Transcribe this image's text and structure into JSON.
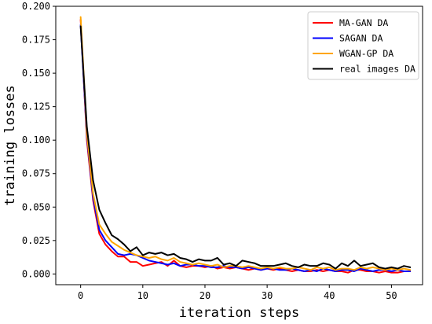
{
  "chart_data": {
    "type": "line",
    "xlabel": "iteration steps",
    "ylabel": "training losses",
    "xlim": [
      -4,
      55
    ],
    "ylim": [
      -0.008,
      0.2
    ],
    "xticks": [
      0,
      10,
      20,
      30,
      40,
      50
    ],
    "yticks": [
      0.0,
      0.025,
      0.05,
      0.075,
      0.1,
      0.125,
      0.15,
      0.175,
      0.2
    ],
    "ytick_labels": [
      "0.000",
      "0.025",
      "0.050",
      "0.075",
      "0.100",
      "0.125",
      "0.150",
      "0.175",
      "0.200"
    ],
    "grid": false,
    "legend_position": "top-right",
    "x": [
      0,
      1,
      2,
      3,
      4,
      5,
      6,
      7,
      8,
      9,
      10,
      11,
      12,
      13,
      14,
      15,
      16,
      17,
      18,
      19,
      20,
      21,
      22,
      23,
      24,
      25,
      26,
      27,
      28,
      29,
      30,
      31,
      32,
      33,
      34,
      35,
      36,
      37,
      38,
      39,
      40,
      41,
      42,
      43,
      44,
      45,
      46,
      47,
      48,
      49,
      50,
      51,
      52,
      53
    ],
    "series": [
      {
        "name": "MA-GAN DA",
        "color": "#ff0000",
        "values": [
          0.19,
          0.1,
          0.055,
          0.03,
          0.022,
          0.017,
          0.013,
          0.013,
          0.009,
          0.009,
          0.006,
          0.007,
          0.008,
          0.009,
          0.006,
          0.01,
          0.006,
          0.005,
          0.006,
          0.006,
          0.005,
          0.006,
          0.004,
          0.005,
          0.004,
          0.005,
          0.004,
          0.003,
          0.004,
          0.003,
          0.004,
          0.003,
          0.004,
          0.003,
          0.002,
          0.003,
          0.002,
          0.002,
          0.003,
          0.002,
          0.003,
          0.002,
          0.002,
          0.001,
          0.003,
          0.003,
          0.002,
          0.002,
          0.001,
          0.002,
          0.001,
          0.001,
          0.002,
          0.002
        ]
      },
      {
        "name": "SAGAN DA",
        "color": "#0000ff",
        "values": [
          0.186,
          0.103,
          0.057,
          0.033,
          0.025,
          0.02,
          0.015,
          0.014,
          0.015,
          0.014,
          0.012,
          0.01,
          0.009,
          0.008,
          0.007,
          0.008,
          0.006,
          0.007,
          0.007,
          0.006,
          0.006,
          0.005,
          0.005,
          0.006,
          0.005,
          0.005,
          0.004,
          0.005,
          0.004,
          0.003,
          0.004,
          0.004,
          0.003,
          0.003,
          0.004,
          0.003,
          0.002,
          0.003,
          0.002,
          0.004,
          0.003,
          0.002,
          0.003,
          0.003,
          0.002,
          0.004,
          0.003,
          0.002,
          0.003,
          0.003,
          0.002,
          0.003,
          0.002,
          0.002
        ]
      },
      {
        "name": "WGAN-GP DA",
        "color": "#ffa500",
        "values": [
          0.192,
          0.105,
          0.06,
          0.037,
          0.03,
          0.024,
          0.021,
          0.018,
          0.016,
          0.014,
          0.013,
          0.012,
          0.013,
          0.011,
          0.01,
          0.012,
          0.009,
          0.008,
          0.007,
          0.008,
          0.007,
          0.006,
          0.007,
          0.005,
          0.006,
          0.006,
          0.005,
          0.006,
          0.005,
          0.004,
          0.005,
          0.004,
          0.005,
          0.004,
          0.004,
          0.005,
          0.004,
          0.003,
          0.005,
          0.004,
          0.005,
          0.003,
          0.004,
          0.004,
          0.003,
          0.005,
          0.004,
          0.005,
          0.004,
          0.003,
          0.004,
          0.003,
          0.004,
          0.003
        ]
      },
      {
        "name": "real images DA",
        "color": "#000000",
        "values": [
          0.185,
          0.11,
          0.07,
          0.048,
          0.038,
          0.029,
          0.026,
          0.022,
          0.017,
          0.02,
          0.014,
          0.016,
          0.015,
          0.016,
          0.014,
          0.015,
          0.012,
          0.011,
          0.009,
          0.011,
          0.01,
          0.01,
          0.012,
          0.007,
          0.008,
          0.006,
          0.01,
          0.009,
          0.008,
          0.006,
          0.006,
          0.006,
          0.007,
          0.008,
          0.006,
          0.005,
          0.007,
          0.006,
          0.006,
          0.008,
          0.007,
          0.004,
          0.008,
          0.006,
          0.01,
          0.006,
          0.007,
          0.008,
          0.005,
          0.004,
          0.005,
          0.004,
          0.006,
          0.005
        ]
      }
    ]
  }
}
